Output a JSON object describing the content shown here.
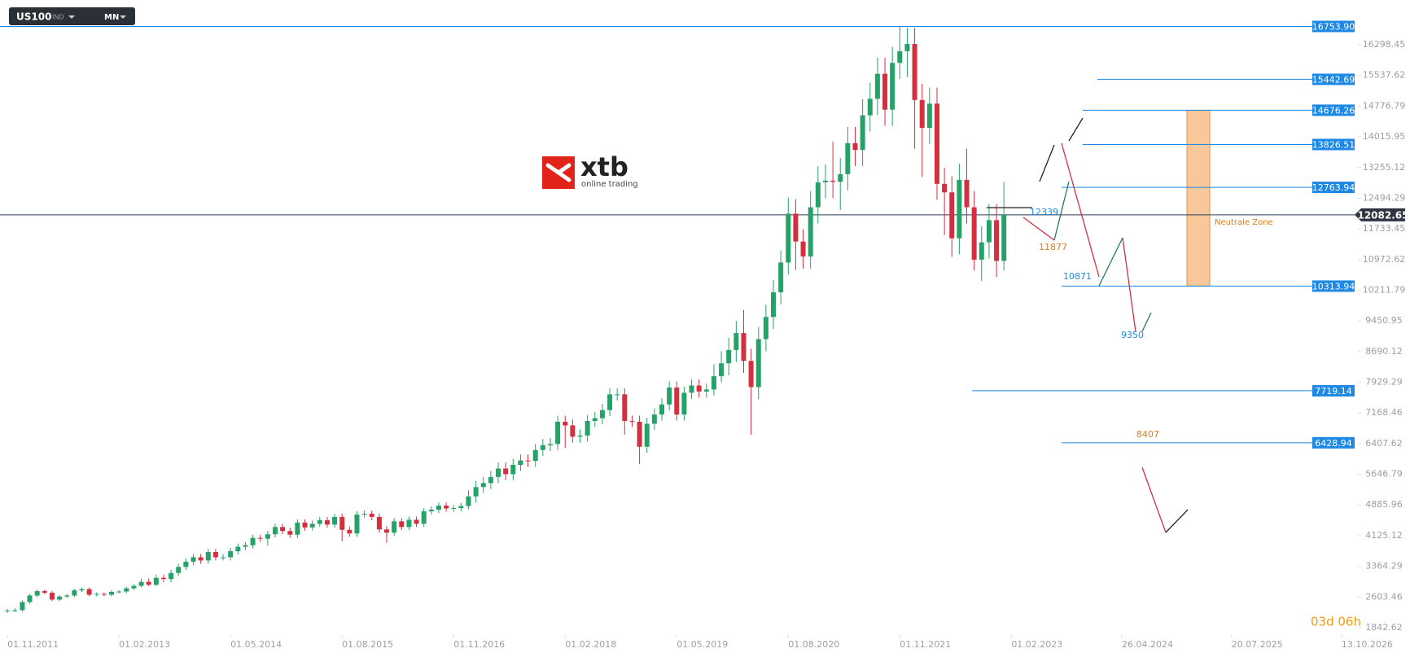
{
  "toolbar": {
    "symbol": "US100",
    "kind": "IND",
    "interval": "MN"
  },
  "logo": {
    "name": "xtb",
    "tagline": "online trading"
  },
  "countdown": "03d 06h",
  "chart_data": {
    "type": "candlestick",
    "up_color": "#26a269",
    "down_color": "#d32f3f",
    "open": [
      2250,
      2270,
      2278,
      2480,
      2640,
      2750,
      2710,
      2540,
      2615,
      2640,
      2770,
      2800,
      2660,
      2680,
      2660,
      2730,
      2740,
      2820,
      2880,
      2980,
      2910,
      3080,
      3050,
      3200,
      3350,
      3480,
      3590,
      3510,
      3720,
      3590,
      3590,
      3740,
      3850,
      3890,
      4070,
      4050,
      4160,
      4340,
      4240,
      4150,
      4450,
      4330,
      4420,
      4510,
      4400,
      4590,
      4270,
      4180,
      4650,
      4670,
      4590,
      4280,
      4200,
      4480,
      4340,
      4520,
      4420,
      4730,
      4770,
      4870,
      4800,
      4810,
      4860,
      5100,
      5330,
      5430,
      5580,
      5790,
      5650,
      5880,
      5990,
      5980,
      6250,
      6370,
      6400,
      6950,
      6860,
      6580,
      6610,
      6970,
      7040,
      7240,
      7630,
      7630,
      6970,
      6950,
      6330,
      6900,
      7130,
      7380,
      7800,
      7130,
      7670,
      7850,
      7700,
      7750,
      8080,
      8400,
      8730,
      9150,
      8460,
      7810,
      9000,
      9550,
      10160,
      10900,
      12110,
      11420,
      11050,
      12270,
      12890,
      12930,
      12900,
      13090,
      13860,
      13690,
      14550,
      14960,
      15580,
      14690,
      15850,
      16140,
      16320,
      14930,
      14240,
      14840,
      12850,
      12640,
      11500,
      12950,
      12270,
      10970,
      11400,
      11950,
      10940
    ],
    "high": [
      2310,
      2320,
      2520,
      2680,
      2790,
      2790,
      2750,
      2655,
      2680,
      2810,
      2840,
      2840,
      2720,
      2720,
      2770,
      2780,
      2860,
      2920,
      3060,
      3060,
      3160,
      3160,
      3280,
      3430,
      3560,
      3670,
      3670,
      3800,
      3800,
      3670,
      3820,
      3930,
      3970,
      4150,
      4150,
      4240,
      4420,
      4420,
      4320,
      4530,
      4530,
      4500,
      4590,
      4590,
      4670,
      4670,
      4350,
      4730,
      4750,
      4750,
      4670,
      4360,
      4560,
      4560,
      4600,
      4600,
      4810,
      4850,
      4950,
      4950,
      4880,
      4940,
      5250,
      5480,
      5580,
      5730,
      5940,
      5940,
      6030,
      6140,
      6140,
      6400,
      6520,
      6550,
      7100,
      7100,
      7010,
      6760,
      7120,
      7190,
      7390,
      7780,
      7780,
      7780,
      7100,
      7100,
      7050,
      7280,
      7530,
      7950,
      7950,
      7820,
      8000,
      8000,
      7900,
      8380,
      8700,
      9030,
      9450,
      9720,
      8760,
      9300,
      9850,
      10460,
      11200,
      12510,
      12470,
      11720,
      12670,
      13290,
      13330,
      13900,
      13490,
      14260,
      14260,
      14950,
      15360,
      15980,
      15980,
      16250,
      16760,
      16720,
      16720,
      15330,
      15240,
      15240,
      13250,
      13040,
      13350,
      13720,
      12670,
      11800,
      12350,
      12350,
      12900
    ],
    "low": [
      2210,
      2230,
      2238,
      2440,
      2600,
      2670,
      2500,
      2500,
      2575,
      2600,
      2730,
      2620,
      2620,
      2620,
      2620,
      2690,
      2700,
      2780,
      2840,
      2870,
      2870,
      2970,
      2970,
      3120,
      3270,
      3400,
      3430,
      3430,
      3510,
      3510,
      3510,
      3660,
      3770,
      3810,
      3970,
      3880,
      4080,
      4160,
      4070,
      4070,
      4250,
      4250,
      4340,
      4320,
      4320,
      3990,
      4100,
      4100,
      4570,
      4510,
      4200,
      3950,
      4120,
      4260,
      4260,
      4340,
      4340,
      4650,
      4690,
      4720,
      4720,
      4730,
      4780,
      4950,
      5180,
      5280,
      5430,
      5500,
      5500,
      5730,
      5830,
      5830,
      6100,
      6220,
      6250,
      6300,
      6430,
      6430,
      6460,
      6820,
      6890,
      7090,
      7480,
      6630,
      6820,
      5900,
      6180,
      6750,
      6980,
      7230,
      6980,
      6980,
      7520,
      7550,
      7550,
      7600,
      7930,
      8100,
      8430,
      8160,
      6630,
      7510,
      8700,
      9250,
      9860,
      10600,
      10720,
      10750,
      10750,
      11870,
      12490,
      12500,
      12200,
      12690,
      13290,
      13290,
      14150,
      14560,
      14290,
      14290,
      15450,
      15500,
      13720,
      13020,
      13840,
      12450,
      11580,
      11040,
      11100,
      11870,
      10700,
      10440,
      11000,
      10540,
      10700
    ],
    "close": [
      2270,
      2278,
      2480,
      2640,
      2750,
      2710,
      2540,
      2615,
      2640,
      2770,
      2800,
      2660,
      2680,
      2660,
      2730,
      2740,
      2820,
      2880,
      2980,
      2910,
      3080,
      3050,
      3200,
      3350,
      3480,
      3590,
      3510,
      3720,
      3590,
      3590,
      3740,
      3850,
      3890,
      4070,
      4050,
      4160,
      4340,
      4240,
      4150,
      4450,
      4330,
      4420,
      4510,
      4400,
      4590,
      4270,
      4180,
      4650,
      4670,
      4590,
      4280,
      4200,
      4480,
      4340,
      4520,
      4420,
      4730,
      4770,
      4870,
      4800,
      4810,
      4860,
      5100,
      5330,
      5430,
      5580,
      5790,
      5650,
      5880,
      5990,
      5980,
      6250,
      6370,
      6400,
      6950,
      6860,
      6580,
      6610,
      6970,
      7040,
      7240,
      7630,
      7630,
      6970,
      6950,
      6330,
      6900,
      7130,
      7380,
      7800,
      7130,
      7670,
      7850,
      7700,
      7750,
      8080,
      8400,
      8730,
      9150,
      8460,
      7810,
      9000,
      9550,
      10160,
      10900,
      12110,
      11420,
      11050,
      12270,
      12890,
      12930,
      12900,
      13090,
      13860,
      13690,
      14550,
      14960,
      15580,
      14690,
      15850,
      16140,
      16320,
      14930,
      14240,
      14840,
      12850,
      12640,
      11500,
      12950,
      12270,
      10970,
      11400,
      11950,
      10940,
      12080
    ],
    "xlim": [
      -1,
      181.6
    ],
    "xticks": [
      {
        "value": 0,
        "label": "01.11.2011"
      },
      {
        "value": 15,
        "label": "01.02.2013"
      },
      {
        "value": 30,
        "label": "01.05.2014"
      },
      {
        "value": 45,
        "label": "01.08.2015"
      },
      {
        "value": 60,
        "label": "01.11.2016"
      },
      {
        "value": 75,
        "label": "01.02.2018"
      },
      {
        "value": 90,
        "label": "01.05.2019"
      },
      {
        "value": 105,
        "label": "01.08.2020"
      },
      {
        "value": 120,
        "label": "01.11.2021"
      },
      {
        "value": 135,
        "label": "01.02.2023"
      },
      {
        "value": 149.85,
        "label": "26.04.2024"
      },
      {
        "value": 164.6,
        "label": "20.07.2025"
      },
      {
        "value": 179.4,
        "label": "13.10.2026"
      }
    ],
    "ylim": [
      1660,
      17410
    ],
    "yticks": [
      16298.45,
      15537.62,
      14776.79,
      14015.95,
      13255.12,
      12494.29,
      11733.45,
      10972.62,
      10211.79,
      9450.95,
      8690.12,
      7929.29,
      7168.46,
      6407.62,
      5646.79,
      4885.96,
      4125.12,
      3364.29,
      2603.46,
      1842.62
    ],
    "level_color": "#1e88e5",
    "levels": [
      {
        "value": 16753.9,
        "label": "16753.90"
      },
      15442.69,
      14676.26,
      13826.51,
      12763.94,
      10313.94,
      7719.14,
      6428.94
    ],
    "current_price": 12082.65,
    "zone_label": "Neutrale Zone",
    "annotations": [
      12339,
      11877,
      10871,
      9350,
      8407
    ]
  }
}
